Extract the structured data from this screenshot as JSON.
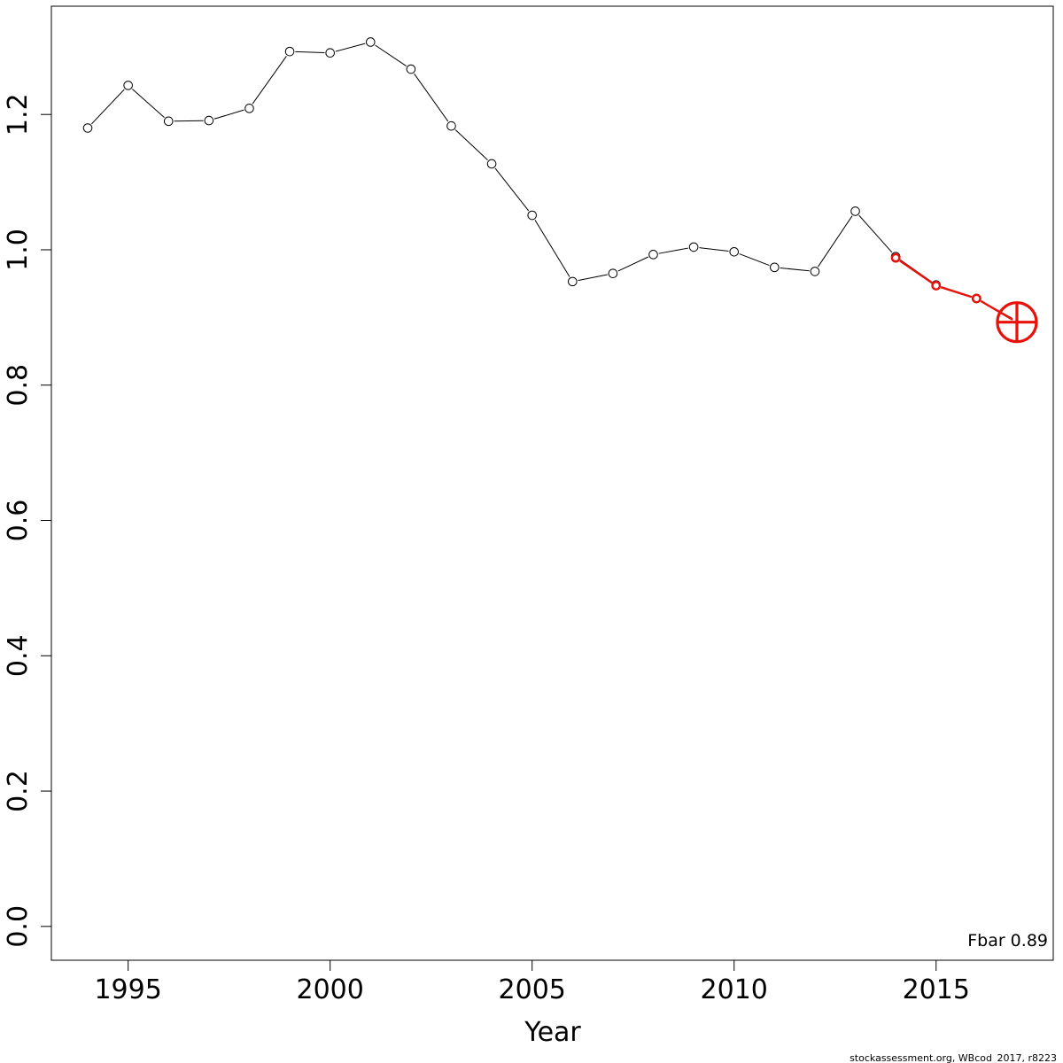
{
  "chart_data": {
    "type": "line",
    "title": "",
    "xlabel": "Year",
    "ylabel": "",
    "xlim": [
      1993.1,
      2017.9
    ],
    "ylim": [
      -0.05,
      1.36
    ],
    "x_ticks": [
      1995,
      2000,
      2005,
      2010,
      2015
    ],
    "y_ticks": [
      0.0,
      0.2,
      0.4,
      0.6,
      0.8,
      1.0,
      1.2
    ],
    "grid": false,
    "legend": "none",
    "series": [
      {
        "color": "#000000",
        "marker": "open-circle",
        "x": [
          1994,
          1995,
          1996,
          1997,
          1998,
          1999,
          2000,
          2001,
          2002,
          2003,
          2004,
          2005,
          2006,
          2007,
          2008,
          2009,
          2010,
          2011,
          2012,
          2013,
          2014,
          2015,
          2016,
          2017
        ],
        "y": [
          1.18,
          1.243,
          1.19,
          1.191,
          1.209,
          1.293,
          1.291,
          1.307,
          1.267,
          1.183,
          1.127,
          1.051,
          0.953,
          0.965,
          0.993,
          1.004,
          0.997,
          0.974,
          0.968,
          1.057,
          0.99,
          0.948,
          0.928,
          0.895
        ]
      },
      {
        "color": "#e8120b",
        "marker": "open-circle",
        "x": [
          2014,
          2015,
          2016,
          2017
        ],
        "y": [
          0.988,
          0.947,
          0.928,
          0.893
        ]
      }
    ],
    "highlight_point": {
      "x": 2017,
      "y": 0.893,
      "color": "#e8120b",
      "marker": "circle-cross"
    },
    "annotations": [
      {
        "text": "Fbar 0.89",
        "position": "bottom-right"
      }
    ],
    "credit": "stockassessment.org, WBcod_2017, r8223"
  }
}
